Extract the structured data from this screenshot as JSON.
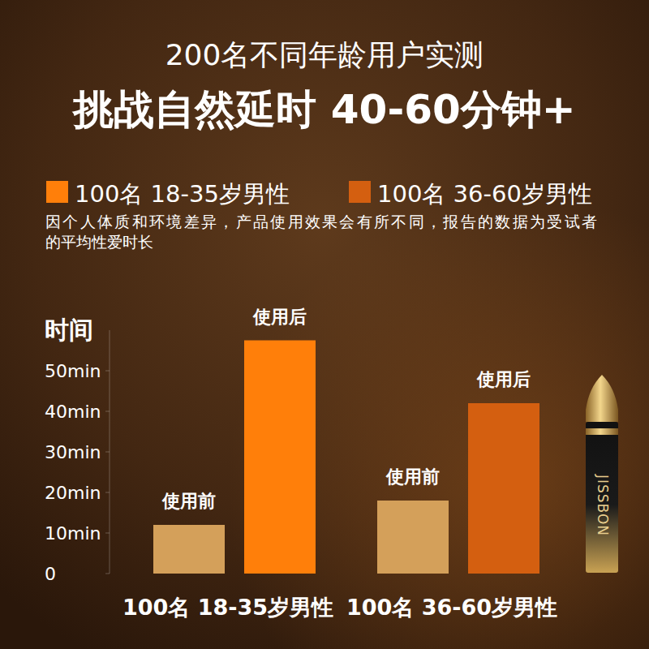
{
  "chart_data": {
    "type": "bar",
    "subtitle": "200名不同年龄用户实测",
    "title": "挑战自然延时 40-60分钟+",
    "annotations": [
      "因个人体质和环境差异，产品使用效果会有所不同，报告的数据为受试者",
      "的平均性爱时长",
      "JISSBON"
    ],
    "y_label": "时间",
    "categories": [
      "100名 18-35岁男性",
      "100名 36-60岁男性"
    ],
    "series": [
      {
        "name": "使用前",
        "color": "#d4a05a",
        "values": [
          12,
          18
        ]
      },
      {
        "name": "使用后",
        "colors": [
          "#ff7f0a",
          "#d45f10"
        ],
        "values": [
          57.5,
          42
        ]
      }
    ],
    "ylim": [
      0,
      60
    ],
    "yticks": [
      0,
      {
        "value": 10,
        "label": "10min"
      },
      {
        "value": 20,
        "label": "20min"
      },
      {
        "value": 30,
        "label": "30min"
      },
      {
        "value": 40,
        "label": "40min"
      },
      {
        "value": 50,
        "label": "50min"
      }
    ],
    "grid": false,
    "legend": "top"
  }
}
